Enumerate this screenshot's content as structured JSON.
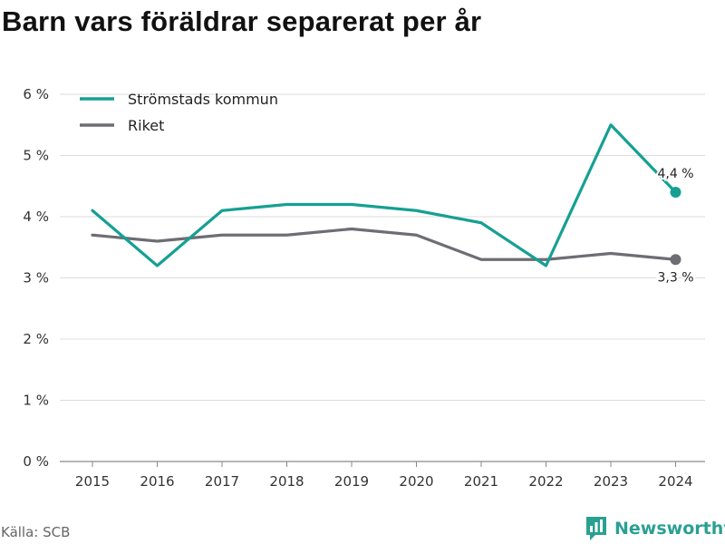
{
  "title": "Barn vars föräldrar separerat per år",
  "source": "Källa: SCB",
  "brand": "Newsworthy",
  "colors": {
    "kommun": "#16a093",
    "riket": "#6d6d74"
  },
  "chart_data": {
    "type": "line",
    "title": "Barn vars föräldrar separerat per år",
    "x": [
      "2015",
      "2016",
      "2017",
      "2018",
      "2019",
      "2020",
      "2021",
      "2022",
      "2023",
      "2024"
    ],
    "series": [
      {
        "name": "Strömstads kommun",
        "values": [
          4.1,
          3.2,
          4.1,
          4.2,
          4.2,
          4.1,
          3.9,
          3.2,
          5.5,
          4.4
        ],
        "end_label": "4,4 %"
      },
      {
        "name": "Riket",
        "values": [
          3.7,
          3.6,
          3.7,
          3.7,
          3.8,
          3.7,
          3.3,
          3.3,
          3.4,
          3.3
        ],
        "end_label": "3,3 %"
      }
    ],
    "ylim": [
      0,
      6
    ],
    "yticks": [
      0,
      1,
      2,
      3,
      4,
      5,
      6
    ],
    "ytick_labels": [
      "0 %",
      "1 %",
      "2 %",
      "3 %",
      "4 %",
      "5 %",
      "6 %"
    ],
    "grid": true,
    "legend": "top-left"
  }
}
